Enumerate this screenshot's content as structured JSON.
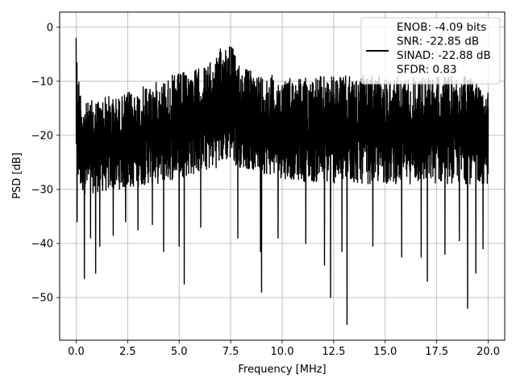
{
  "chart_data": {
    "type": "line",
    "title": "",
    "xlabel": "Frequency [MHz]",
    "ylabel": "PSD [dB]",
    "xlim": [
      -0.8,
      20.8
    ],
    "ylim": [
      -57.9,
      2.8
    ],
    "xticks": [
      0.0,
      2.5,
      5.0,
      7.5,
      10.0,
      12.5,
      15.0,
      17.5,
      20.0
    ],
    "xtick_labels": [
      "0.0",
      "2.5",
      "5.0",
      "7.5",
      "10.0",
      "12.5",
      "15.0",
      "17.5",
      "20.0"
    ],
    "yticks": [
      0,
      -10,
      -20,
      -30,
      -40,
      -50
    ],
    "ytick_labels": [
      "0",
      "−10",
      "−20",
      "−30",
      "−40",
      "−50"
    ],
    "grid": true,
    "legend_position": "top-right",
    "legend_entries": [
      "ENOB: -4.09 bits",
      "SNR: -22.85 dB",
      "SINAD: -22.88 dB",
      "SFDR: 0.83"
    ],
    "series": [
      {
        "color": "#000000",
        "envelope": {
          "x": [
            0.0,
            0.1,
            0.25,
            0.5,
            1.0,
            1.5,
            2.0,
            2.5,
            3.0,
            3.5,
            4.0,
            4.5,
            5.0,
            5.5,
            6.0,
            6.5,
            6.8,
            7.0,
            7.2,
            7.35,
            7.5,
            7.7,
            8.0,
            8.5,
            9.0,
            10.0,
            11.0,
            12.0,
            13.0,
            14.0,
            15.0,
            16.0,
            17.0,
            18.0,
            19.0,
            20.0
          ],
          "high": [
            -2.0,
            -8.0,
            -12.0,
            -14.0,
            -13.0,
            -12.5,
            -13.0,
            -12.0,
            -11.5,
            -10.5,
            -10.0,
            -9.0,
            -8.5,
            -8.0,
            -7.5,
            -6.5,
            -5.5,
            -4.0,
            -3.0,
            -0.5,
            -2.0,
            -5.0,
            -7.0,
            -8.0,
            -8.5,
            -9.0,
            -9.0,
            -9.0,
            -9.0,
            -9.0,
            -9.0,
            -9.0,
            -9.0,
            -9.0,
            -9.0,
            -10.0
          ],
          "low": [
            -25.0,
            -30.0,
            -31.0,
            -31.0,
            -30.5,
            -30.5,
            -30.0,
            -30.0,
            -29.5,
            -29.0,
            -29.0,
            -28.5,
            -28.0,
            -27.5,
            -27.0,
            -26.5,
            -26.0,
            -25.5,
            -25.0,
            -25.0,
            -25.0,
            -25.5,
            -26.0,
            -26.5,
            -27.0,
            -28.0,
            -28.5,
            -29.0,
            -29.0,
            -29.0,
            -29.0,
            -29.0,
            -29.0,
            -29.0,
            -29.0,
            -29.0
          ]
        },
        "dips": [
          {
            "x": 0.05,
            "y": -36.0
          },
          {
            "x": 0.4,
            "y": -46.5
          },
          {
            "x": 0.7,
            "y": -39.0
          },
          {
            "x": 0.95,
            "y": -45.5
          },
          {
            "x": 1.15,
            "y": -40.5
          },
          {
            "x": 1.8,
            "y": -38.5
          },
          {
            "x": 2.4,
            "y": -36.0
          },
          {
            "x": 3.0,
            "y": -37.5
          },
          {
            "x": 3.7,
            "y": -36.5
          },
          {
            "x": 4.25,
            "y": -41.5
          },
          {
            "x": 5.0,
            "y": -40.5
          },
          {
            "x": 5.25,
            "y": -47.5
          },
          {
            "x": 6.05,
            "y": -37.0
          },
          {
            "x": 7.85,
            "y": -39.0
          },
          {
            "x": 8.95,
            "y": -41.5
          },
          {
            "x": 9.0,
            "y": -49.0
          },
          {
            "x": 9.8,
            "y": -39.0
          },
          {
            "x": 11.15,
            "y": -40.0
          },
          {
            "x": 12.05,
            "y": -44.0
          },
          {
            "x": 12.35,
            "y": -50.0
          },
          {
            "x": 12.9,
            "y": -41.5
          },
          {
            "x": 13.15,
            "y": -55.0
          },
          {
            "x": 14.4,
            "y": -40.5
          },
          {
            "x": 15.8,
            "y": -42.5
          },
          {
            "x": 16.75,
            "y": -42.5
          },
          {
            "x": 17.05,
            "y": -47.0
          },
          {
            "x": 17.9,
            "y": -42.0
          },
          {
            "x": 18.6,
            "y": -39.5
          },
          {
            "x": 19.0,
            "y": -52.0
          },
          {
            "x": 19.4,
            "y": -45.5
          },
          {
            "x": 19.75,
            "y": -41.0
          }
        ]
      }
    ]
  }
}
